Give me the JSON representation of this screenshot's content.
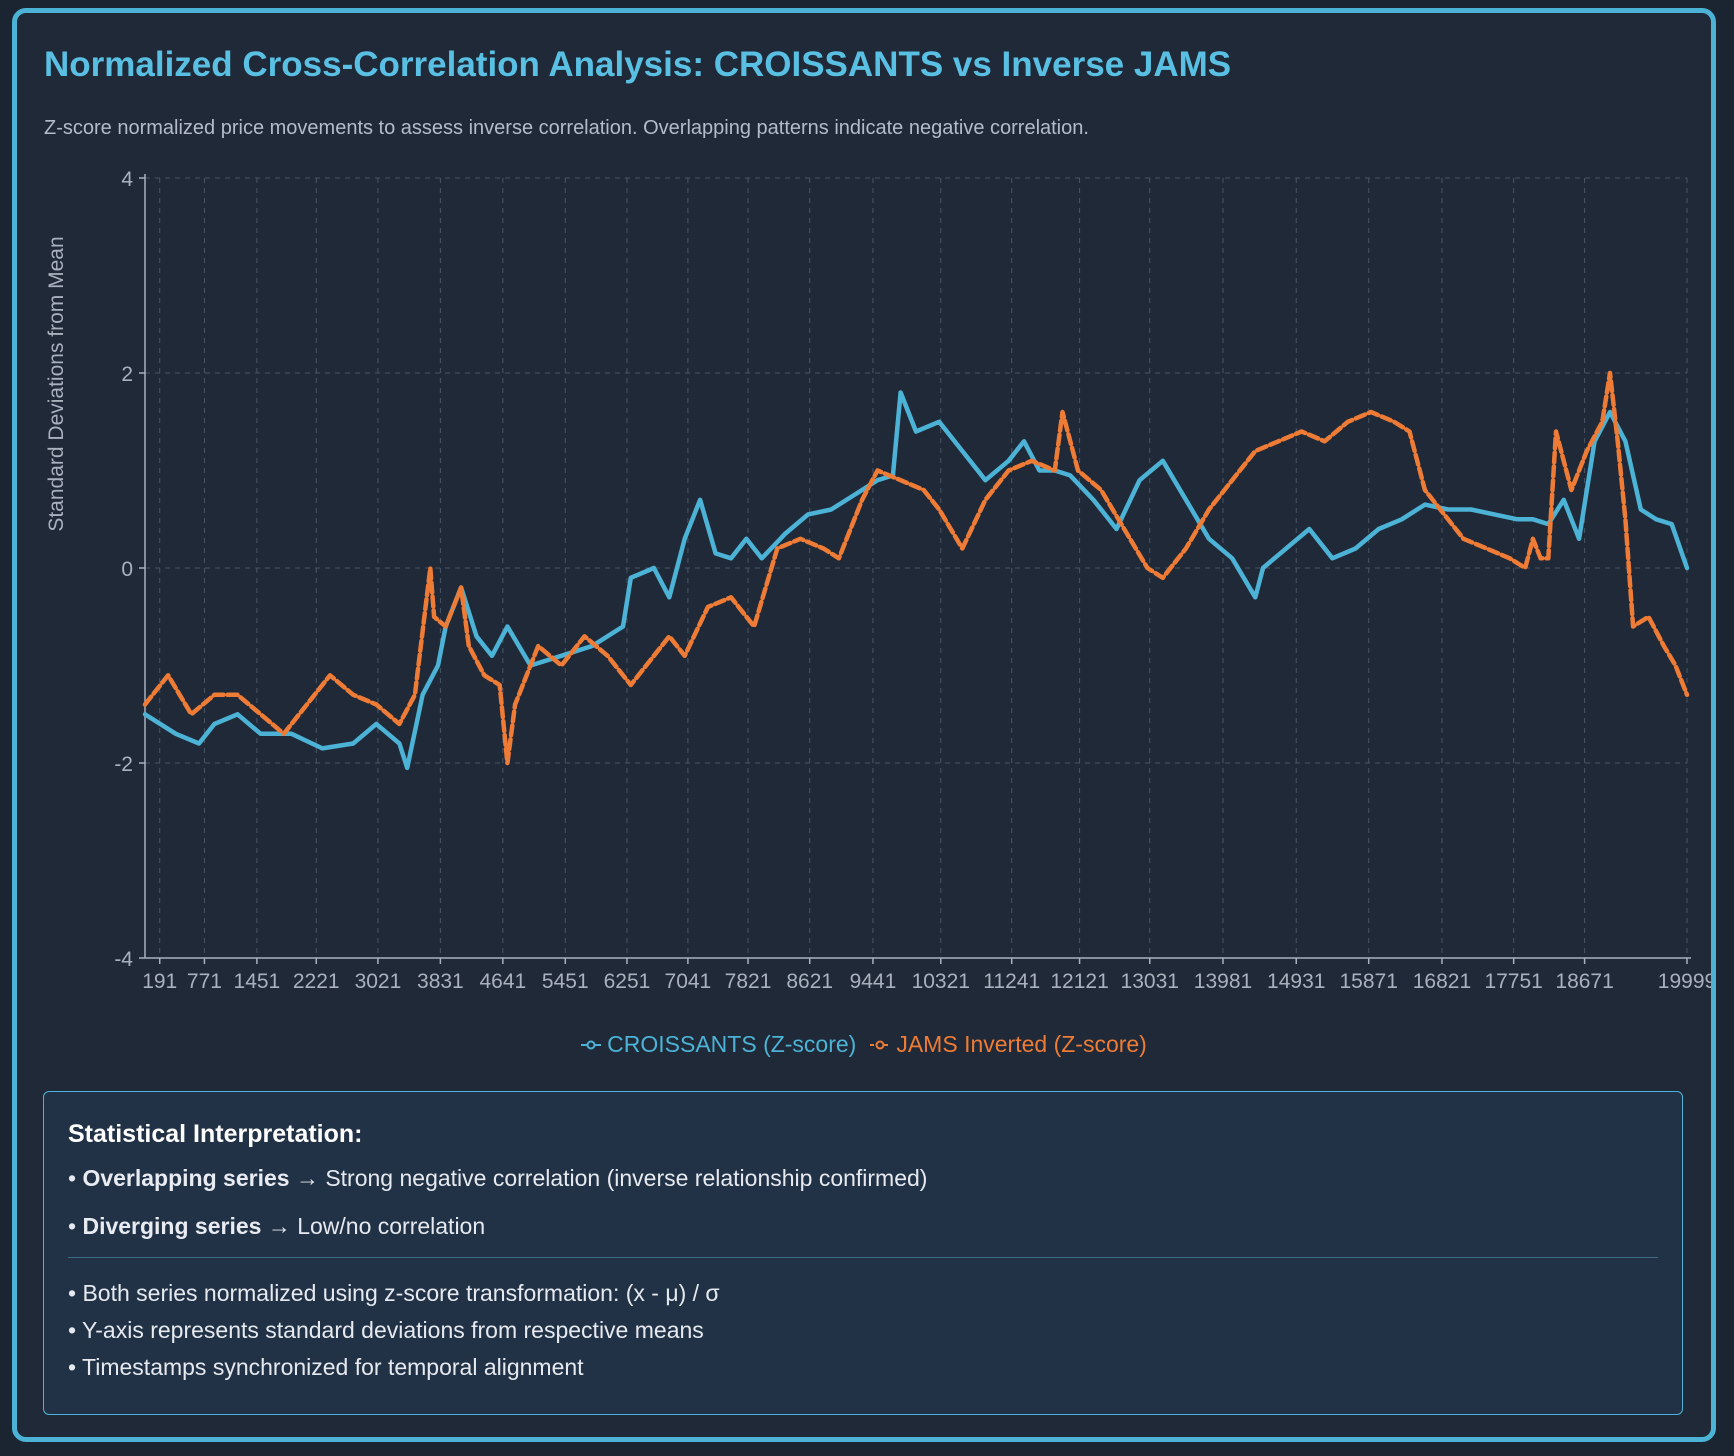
{
  "header": {
    "title": "Normalized Cross-Correlation Analysis: CROISSANTS vs Inverse JAMS",
    "subtitle": "Z-score normalized price movements to assess inverse correlation. Overlapping patterns indicate negative correlation."
  },
  "colors": {
    "croissants": "#4cb3d6",
    "jams": "#ee7c36",
    "grid": "#4a5565",
    "axis_text": "#a9b1bd"
  },
  "chart_data": {
    "type": "line",
    "title": "",
    "xlabel": "",
    "ylabel": "Standard Deviations from Mean",
    "ylim": [
      -4,
      4
    ],
    "yticks": [
      4,
      2,
      0,
      -2,
      -4
    ],
    "xlim": [
      0,
      19999
    ],
    "xticks": [
      191,
      771,
      1451,
      2221,
      3021,
      3831,
      4641,
      5451,
      6251,
      7041,
      7821,
      8621,
      9441,
      10321,
      11241,
      12121,
      13031,
      13981,
      14931,
      15871,
      16821,
      17751,
      18671,
      19999
    ],
    "grid": true,
    "legend": "bottom-center",
    "series": [
      {
        "name": "CROISSANTS (Z-score)",
        "style": "solid",
        "x": [
          0,
          400,
          700,
          900,
          1200,
          1500,
          1900,
          2300,
          2700,
          3000,
          3300,
          3400,
          3600,
          3800,
          3900,
          4100,
          4300,
          4500,
          4700,
          5000,
          5400,
          5800,
          6200,
          6300,
          6600,
          6800,
          7000,
          7200,
          7400,
          7600,
          7800,
          8000,
          8300,
          8600,
          8900,
          9200,
          9500,
          9700,
          9800,
          10000,
          10300,
          10600,
          10900,
          11200,
          11400,
          11600,
          11800,
          12000,
          12300,
          12600,
          12900,
          13200,
          13500,
          13800,
          14100,
          14400,
          14500,
          14800,
          15100,
          15400,
          15700,
          16000,
          16300,
          16600,
          16900,
          17200,
          17500,
          17800,
          18000,
          18200,
          18400,
          18600,
          18800,
          19000,
          19200,
          19400,
          19600,
          19800,
          19999
        ],
        "values": [
          -1.5,
          -1.7,
          -1.8,
          -1.6,
          -1.5,
          -1.7,
          -1.7,
          -1.85,
          -1.8,
          -1.6,
          -1.8,
          -2.05,
          -1.3,
          -1.0,
          -0.6,
          -0.2,
          -0.7,
          -0.9,
          -0.6,
          -1.0,
          -0.9,
          -0.8,
          -0.6,
          -0.1,
          0.0,
          -0.3,
          0.3,
          0.7,
          0.15,
          0.1,
          0.3,
          0.1,
          0.35,
          0.55,
          0.6,
          0.75,
          0.9,
          0.95,
          1.8,
          1.4,
          1.5,
          1.2,
          0.9,
          1.1,
          1.3,
          1.0,
          1.0,
          0.95,
          0.7,
          0.4,
          0.9,
          1.1,
          0.7,
          0.3,
          0.1,
          -0.3,
          0.0,
          0.2,
          0.4,
          0.1,
          0.2,
          0.4,
          0.5,
          0.65,
          0.6,
          0.6,
          0.55,
          0.5,
          0.5,
          0.45,
          0.7,
          0.3,
          1.3,
          1.6,
          1.3,
          0.6,
          0.5,
          0.45,
          0.0
        ]
      },
      {
        "name": "JAMS Inverted (Z-score)",
        "style": "dashed",
        "x": [
          0,
          300,
          600,
          900,
          1200,
          1500,
          1800,
          2100,
          2400,
          2700,
          3000,
          3300,
          3500,
          3700,
          3750,
          3900,
          4100,
          4200,
          4400,
          4600,
          4700,
          4800,
          5100,
          5400,
          5700,
          6000,
          6300,
          6500,
          6800,
          7000,
          7300,
          7600,
          7900,
          8200,
          8500,
          8800,
          9000,
          9300,
          9500,
          9800,
          10100,
          10300,
          10600,
          10900,
          11200,
          11500,
          11800,
          11900,
          12100,
          12400,
          12700,
          13000,
          13200,
          13500,
          13800,
          14100,
          14400,
          14700,
          15000,
          15300,
          15600,
          15900,
          16200,
          16400,
          16600,
          16800,
          17100,
          17400,
          17700,
          17900,
          18000,
          18100,
          18200,
          18300,
          18500,
          18700,
          18900,
          19000,
          19100,
          19200,
          19300,
          19500,
          19700,
          19850,
          19999
        ],
        "values": [
          -1.4,
          -1.1,
          -1.5,
          -1.3,
          -1.3,
          -1.5,
          -1.7,
          -1.4,
          -1.1,
          -1.3,
          -1.4,
          -1.6,
          -1.3,
          0.0,
          -0.5,
          -0.6,
          -0.2,
          -0.8,
          -1.1,
          -1.2,
          -2.0,
          -1.4,
          -0.8,
          -1.0,
          -0.7,
          -0.9,
          -1.2,
          -1.0,
          -0.7,
          -0.9,
          -0.4,
          -0.3,
          -0.6,
          0.2,
          0.3,
          0.2,
          0.1,
          0.7,
          1.0,
          0.9,
          0.8,
          0.6,
          0.2,
          0.7,
          1.0,
          1.1,
          1.0,
          1.6,
          1.0,
          0.8,
          0.4,
          0.0,
          -0.1,
          0.2,
          0.6,
          0.9,
          1.2,
          1.3,
          1.4,
          1.3,
          1.5,
          1.6,
          1.5,
          1.4,
          0.8,
          0.6,
          0.3,
          0.2,
          0.1,
          0.0,
          0.3,
          0.1,
          0.1,
          1.4,
          0.8,
          1.2,
          1.5,
          2.0,
          1.3,
          0.5,
          -0.6,
          -0.5,
          -0.8,
          -1.0,
          -1.3
        ]
      }
    ]
  },
  "interpretation": {
    "title": "Statistical Interpretation:",
    "bullet": "•",
    "arrow": "→",
    "lines": [
      {
        "label": "Overlapping series",
        "text": "Strong negative correlation (inverse relationship confirmed)"
      },
      {
        "label": "Diverging series",
        "text": "Low/no correlation"
      }
    ],
    "notes": [
      "Both series normalized using z-score transformation: (x - μ) / σ",
      "Y-axis represents standard deviations from respective means",
      "Timestamps synchronized for temporal alignment"
    ]
  }
}
